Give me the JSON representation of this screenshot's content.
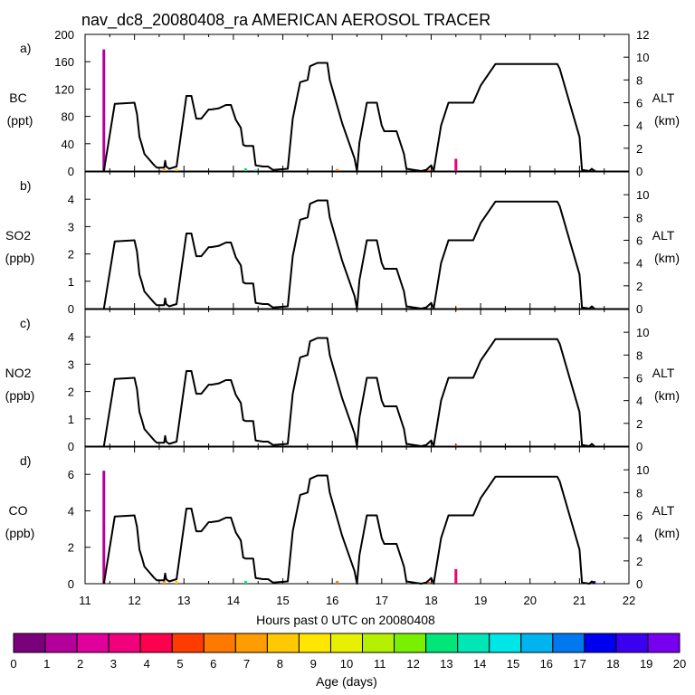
{
  "title": "nav_dc8_20080408_ra AMERICAN AEROSOL TRACER",
  "x_axis": {
    "label": "Hours past 0 UTC on 20080408",
    "ticks": [
      "11",
      "12",
      "13",
      "14",
      "15",
      "16",
      "17",
      "18",
      "19",
      "20",
      "21",
      "22"
    ]
  },
  "colorbar": {
    "label": "Age (days)",
    "ticks": [
      "0",
      "1",
      "2",
      "3",
      "4",
      "5",
      "6",
      "7",
      "8",
      "9",
      "10",
      "11",
      "12",
      "13",
      "14",
      "15",
      "16",
      "17",
      "18",
      "19",
      "20"
    ],
    "colors": [
      "#7b007b",
      "#b4009a",
      "#e0009c",
      "#f0007a",
      "#ff0050",
      "#ff3c00",
      "#ff7800",
      "#ff9c00",
      "#ffc800",
      "#ffe600",
      "#e6f000",
      "#b4f000",
      "#78f000",
      "#00e678",
      "#00e6b4",
      "#00e6e6",
      "#00b4f0",
      "#0078f0",
      "#0000f0",
      "#3c00f0",
      "#7800f0"
    ]
  },
  "chart_data": [
    {
      "panel": "a)",
      "type": "area",
      "ylabel": "BC",
      "yunit": "(ppt)",
      "ylim": [
        0,
        200
      ],
      "yticks": [
        "0",
        "40",
        "80",
        "120",
        "160",
        "200"
      ],
      "y2label": "ALT",
      "y2unit": "(km)",
      "y2lim": [
        0,
        12
      ],
      "y2ticks": [
        "0",
        "2",
        "4",
        "6",
        "8",
        "10",
        "12"
      ],
      "xlim": [
        11,
        22
      ],
      "tracer_events": [
        {
          "x": 11.38,
          "value": 178,
          "age_days": 1
        },
        {
          "x": 12.6,
          "value": 3,
          "age_days": 7
        },
        {
          "x": 12.85,
          "value": 3,
          "age_days": 8
        },
        {
          "x": 14.25,
          "value": 4,
          "age_days": 13
        },
        {
          "x": 14.45,
          "value": 2,
          "age_days": 15
        },
        {
          "x": 16.1,
          "value": 3,
          "age_days": 6
        },
        {
          "x": 17.95,
          "value": 2,
          "age_days": 5
        },
        {
          "x": 18.5,
          "value": 18,
          "age_days": 3
        },
        {
          "x": 21.3,
          "value": 2,
          "age_days": 19
        }
      ]
    },
    {
      "panel": "b)",
      "type": "area",
      "ylabel": "SO2",
      "yunit": "(ppb)",
      "ylim": [
        0,
        5
      ],
      "yticks": [
        "0",
        "1",
        "2",
        "3",
        "4"
      ],
      "y2label": "ALT",
      "y2unit": "(km)",
      "y2lim": [
        0,
        12
      ],
      "y2ticks": [
        "0",
        "2",
        "4",
        "6",
        "8",
        "10"
      ],
      "xlim": [
        11,
        22
      ],
      "tracer_events": [
        {
          "x": 18.55,
          "value": 0.03,
          "age_days": 6
        }
      ]
    },
    {
      "panel": "c)",
      "type": "area",
      "ylabel": "NO2",
      "yunit": "(ppb)",
      "ylim": [
        0,
        5
      ],
      "yticks": [
        "0",
        "1",
        "2",
        "3",
        "4"
      ],
      "y2label": "ALT",
      "y2unit": "(km)",
      "y2lim": [
        0,
        12
      ],
      "y2ticks": [
        "0",
        "2",
        "4",
        "6",
        "8",
        "10"
      ],
      "xlim": [
        11,
        22
      ],
      "tracer_events": [
        {
          "x": 18.5,
          "value": 0.05,
          "age_days": 5
        }
      ]
    },
    {
      "panel": "d)",
      "type": "area",
      "ylabel": "CO",
      "yunit": "(ppb)",
      "ylim": [
        0,
        7.5
      ],
      "yticks": [
        "0",
        "2",
        "4",
        "6"
      ],
      "y2label": "ALT",
      "y2unit": "(km)",
      "y2lim": [
        0,
        12
      ],
      "y2ticks": [
        "0",
        "2",
        "4",
        "6",
        "8",
        "10"
      ],
      "xlim": [
        11,
        22
      ],
      "tracer_events": [
        {
          "x": 11.38,
          "value": 6.2,
          "age_days": 1
        },
        {
          "x": 12.6,
          "value": 0.15,
          "age_days": 7
        },
        {
          "x": 12.85,
          "value": 0.15,
          "age_days": 8
        },
        {
          "x": 14.25,
          "value": 0.15,
          "age_days": 13
        },
        {
          "x": 16.1,
          "value": 0.15,
          "age_days": 6
        },
        {
          "x": 17.95,
          "value": 0.1,
          "age_days": 5
        },
        {
          "x": 18.5,
          "value": 0.8,
          "age_days": 3
        },
        {
          "x": 21.3,
          "value": 0.15,
          "age_days": 19
        }
      ]
    }
  ],
  "altitude_track": {
    "unit": "km",
    "x": [
      11.38,
      11.6,
      12.0,
      12.05,
      12.1,
      12.15,
      12.2,
      12.3,
      12.4,
      12.45,
      12.6,
      12.62,
      12.64,
      12.7,
      12.85,
      12.95,
      13.05,
      13.15,
      13.25,
      13.35,
      13.5,
      13.55,
      13.7,
      13.85,
      13.95,
      14.05,
      14.15,
      14.2,
      14.25,
      14.4,
      14.45,
      14.6,
      14.7,
      14.8,
      15.1,
      15.2,
      15.35,
      15.5,
      15.55,
      15.7,
      15.9,
      15.95,
      16.2,
      16.45,
      16.5,
      16.55,
      16.7,
      16.9,
      17.0,
      17.05,
      17.3,
      17.45,
      17.5,
      17.8,
      17.9,
      18.0,
      18.05,
      18.2,
      18.35,
      18.65,
      18.85,
      19.0,
      19.3,
      20.55,
      20.6,
      20.8,
      21.0,
      21.05,
      21.2,
      21.25,
      21.3
    ],
    "alt": [
      0,
      5.9,
      6.0,
      5.0,
      3.0,
      2.3,
      1.5,
      1.0,
      0.5,
      0.3,
      0.3,
      0.9,
      0.4,
      0.2,
      0.4,
      3.5,
      6.6,
      6.6,
      4.6,
      4.6,
      5.4,
      5.4,
      5.5,
      5.8,
      5.8,
      4.5,
      3.8,
      2.3,
      2.2,
      2.2,
      0.5,
      0.4,
      0.4,
      0.1,
      0.2,
      4.6,
      7.8,
      8.0,
      9.2,
      9.5,
      9.5,
      8.0,
      4.2,
      1.1,
      0,
      2.5,
      6.0,
      6.0,
      4.0,
      3.5,
      3.5,
      1.5,
      0.2,
      0,
      0.1,
      0.5,
      0,
      4.0,
      6.0,
      6.0,
      6.0,
      7.5,
      9.4,
      9.4,
      9.0,
      6.0,
      3.0,
      0.1,
      0,
      0.2,
      0
    ]
  }
}
